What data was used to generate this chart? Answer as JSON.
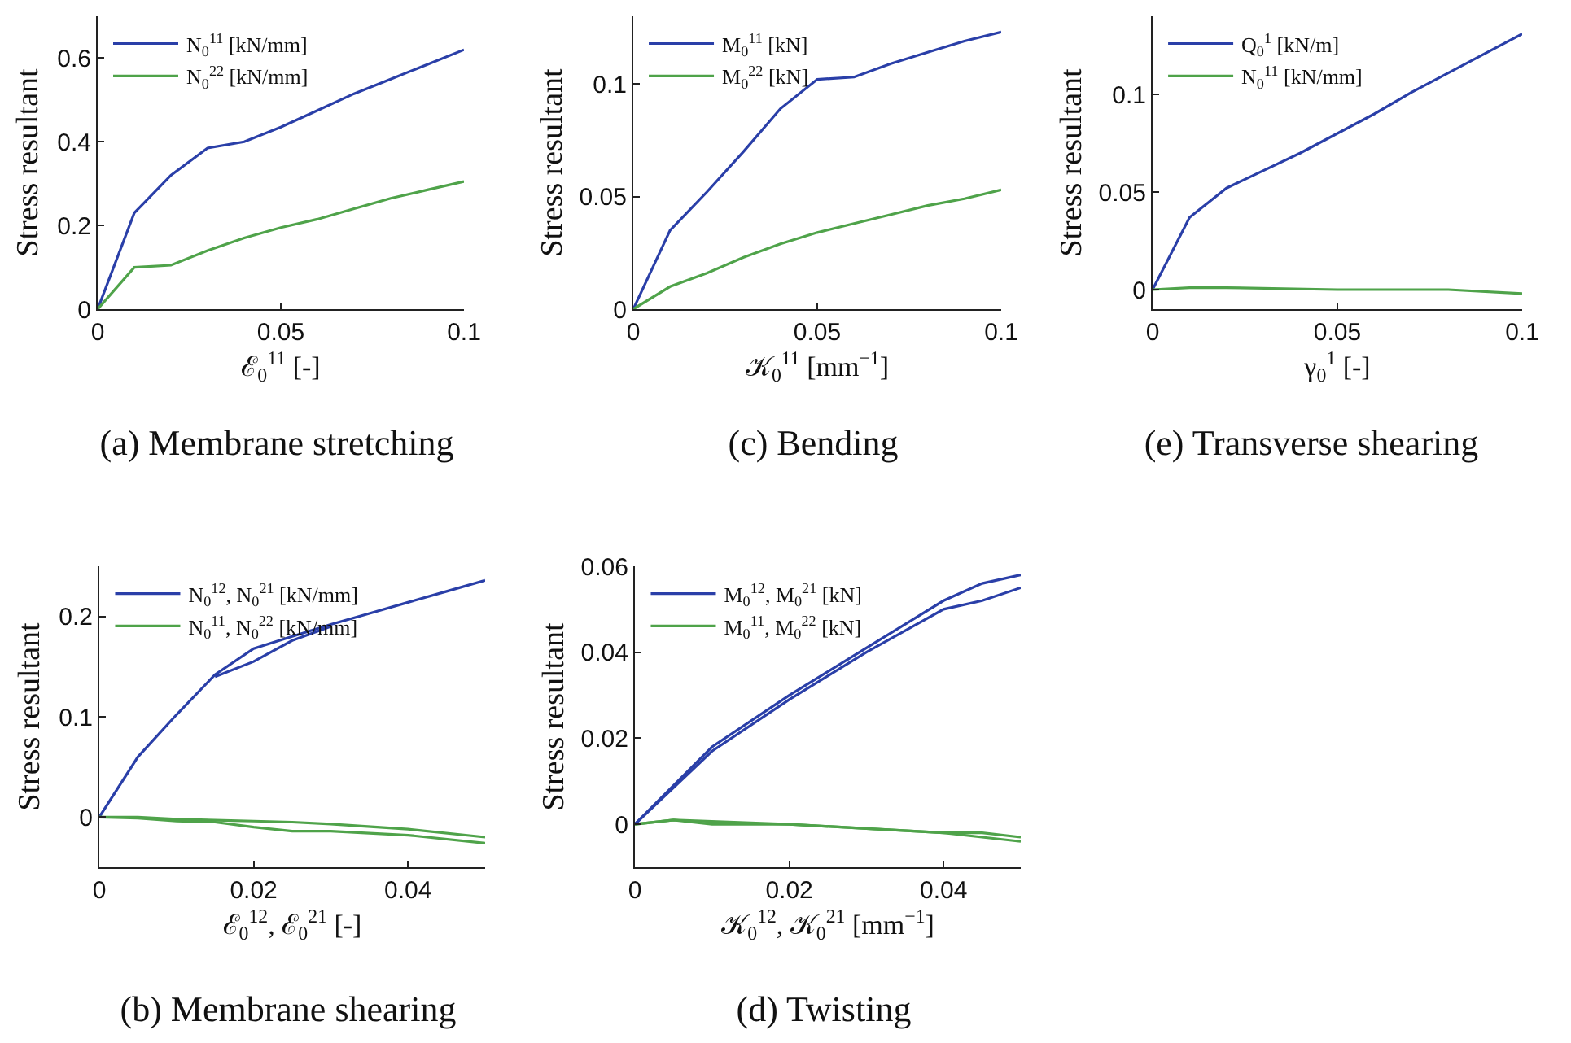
{
  "chart_data": [
    {
      "type": "line",
      "title": "(a) Membrane stretching",
      "xlabel": "ℰ$_{0}$$^{11}$ [-]",
      "ylabel": "Stress resultant",
      "xlim": [
        0,
        0.1
      ],
      "xticks": [
        0,
        0.05,
        0.1
      ],
      "ylim": [
        0,
        0.7
      ],
      "yticks": [
        0,
        0.2,
        0.4,
        0.6
      ],
      "legend": "top left",
      "grid": false,
      "x": [
        0,
        0.01,
        0.02,
        0.03,
        0.04,
        0.05,
        0.06,
        0.07,
        0.08,
        0.09,
        0.1
      ],
      "series": [
        {
          "name": "N$_{0}$$^{11}$ [kN/mm]",
          "color": "#2a3fa8",
          "values": [
            0,
            0.23,
            0.32,
            0.385,
            0.4,
            0.435,
            0.475,
            0.515,
            0.55,
            0.585,
            0.62
          ]
        },
        {
          "name": "N$_{0}$$^{22}$ [kN/mm]",
          "color": "#4fa34a",
          "values": [
            0,
            0.1,
            0.105,
            0.14,
            0.17,
            0.195,
            0.215,
            0.24,
            0.265,
            0.285,
            0.305
          ]
        }
      ]
    },
    {
      "type": "line",
      "title": "(c) Bending",
      "xlabel": "𝒦$_{0}$$^{11}$ [mm$^{−1}$]",
      "ylabel": "Stress resultant",
      "xlim": [
        0,
        0.1
      ],
      "xticks": [
        0,
        0.05,
        0.1
      ],
      "ylim": [
        0,
        0.13
      ],
      "yticks": [
        0,
        0.05,
        0.1
      ],
      "legend": "top left",
      "grid": false,
      "x": [
        0,
        0.01,
        0.02,
        0.03,
        0.04,
        0.05,
        0.06,
        0.07,
        0.08,
        0.09,
        0.1
      ],
      "series": [
        {
          "name": "M$_{0}$$^{11}$ [kN]",
          "color": "#2a3fa8",
          "values": [
            0,
            0.035,
            0.052,
            0.07,
            0.089,
            0.102,
            0.103,
            0.109,
            0.114,
            0.119,
            0.123
          ]
        },
        {
          "name": "M$_{0}$$^{22}$ [kN]",
          "color": "#4fa34a",
          "values": [
            0,
            0.01,
            0.016,
            0.023,
            0.029,
            0.034,
            0.038,
            0.042,
            0.046,
            0.049,
            0.053
          ]
        }
      ]
    },
    {
      "type": "line",
      "title": "(e) Transverse shearing",
      "xlabel": "γ$_{0}$$^{1}$ [-]",
      "ylabel": "Stress resultant",
      "xlim": [
        0,
        0.1
      ],
      "xticks": [
        0,
        0.05,
        0.1
      ],
      "ylim": [
        -0.01,
        0.14
      ],
      "yticks": [
        0,
        0.05,
        0.1
      ],
      "legend": "top left",
      "grid": false,
      "series": [
        {
          "name": "Q$_{0}$$^{1}$ [kN/m]",
          "color": "#2a3fa8",
          "x": [
            0,
            0.01,
            0.02,
            0.03,
            0.04,
            0.05,
            0.06,
            0.07,
            0.08,
            0.09,
            0.1
          ],
          "values": [
            0,
            0.037,
            0.052,
            0.061,
            0.07,
            0.08,
            0.09,
            0.101,
            0.111,
            0.121,
            0.131
          ]
        },
        {
          "name": "N$_{0}$$^{11}$ [kN/mm]",
          "color": "#4fa34a",
          "x": [
            0,
            0.01,
            0.02,
            0.05,
            0.08,
            0.1
          ],
          "values": [
            0,
            0.001,
            0.001,
            0,
            0,
            -0.002
          ]
        }
      ]
    },
    {
      "type": "line",
      "title": "(b) Membrane shearing",
      "xlabel": "ℰ$_{0}$$^{12}$, ℰ$_{0}$$^{21}$ [-]",
      "ylabel": "Stress resultant",
      "xlim": [
        0,
        0.05
      ],
      "xticks": [
        0,
        0.02,
        0.04
      ],
      "ylim": [
        -0.05,
        0.25
      ],
      "yticks": [
        0,
        0.1,
        0.2
      ],
      "legend": "top left",
      "grid": false,
      "series": [
        {
          "name": "N$_{0}$$^{12}$, N$_{0}$$^{21}$ [kN/mm]",
          "color": "#2a3fa8",
          "x": [
            0,
            0.005,
            0.01,
            0.015,
            0.02,
            0.025,
            0.03,
            0.035,
            0.04,
            0.045,
            0.05
          ],
          "values": [
            0,
            0.06,
            0.102,
            0.142,
            0.168,
            0.18,
            0.192,
            0.203,
            0.214,
            0.225,
            0.236
          ]
        },
        {
          "color": "#2a3fa8",
          "x": [
            0.015,
            0.02,
            0.025,
            0.03
          ],
          "values": [
            0.14,
            0.155,
            0.176,
            0.19
          ]
        },
        {
          "name": "N$_{0}$$^{11}$, N$_{0}$$^{22}$ [kN/mm]",
          "color": "#4fa34a",
          "x": [
            0,
            0.005,
            0.01,
            0.015,
            0.02,
            0.025,
            0.03,
            0.04,
            0.05
          ],
          "values": [
            0,
            0,
            -0.002,
            -0.003,
            -0.004,
            -0.005,
            -0.007,
            -0.012,
            -0.02
          ]
        },
        {
          "color": "#4fa34a",
          "x": [
            0,
            0.005,
            0.01,
            0.015,
            0.02,
            0.025,
            0.03,
            0.04,
            0.05
          ],
          "values": [
            0,
            -0.001,
            -0.004,
            -0.005,
            -0.01,
            -0.014,
            -0.014,
            -0.018,
            -0.026
          ]
        }
      ]
    },
    {
      "type": "line",
      "title": "(d) Twisting",
      "xlabel": "𝒦$_{0}$$^{12}$, 𝒦$_{0}$$^{21}$ [mm$^{−1}$]",
      "ylabel": "Stress resultant",
      "xlim": [
        0,
        0.05
      ],
      "xticks": [
        0,
        0.02,
        0.04
      ],
      "ylim": [
        -0.01,
        0.06
      ],
      "yticks": [
        0,
        0.02,
        0.04,
        0.06
      ],
      "legend": "top left",
      "grid": false,
      "series": [
        {
          "name": "M$_{0}$$^{12}$, M$_{0}$$^{21}$ [kN]",
          "color": "#2a3fa8",
          "x": [
            0,
            0.01,
            0.02,
            0.03,
            0.04,
            0.045,
            0.05
          ],
          "values": [
            0,
            0.018,
            0.03,
            0.041,
            0.052,
            0.056,
            0.058
          ]
        },
        {
          "color": "#2a3fa8",
          "x": [
            0,
            0.01,
            0.02,
            0.03,
            0.04,
            0.045,
            0.05
          ],
          "values": [
            0,
            0.017,
            0.029,
            0.04,
            0.05,
            0.052,
            0.055
          ]
        },
        {
          "name": "M$_{0}$$^{11}$, M$_{0}$$^{22}$ [kN]",
          "color": "#4fa34a",
          "x": [
            0,
            0.005,
            0.01,
            0.02,
            0.03,
            0.04,
            0.045,
            0.05
          ],
          "values": [
            0,
            0.001,
            0,
            0,
            -0.001,
            -0.002,
            -0.002,
            -0.003
          ]
        },
        {
          "color": "#4fa34a",
          "x": [
            0,
            0.005,
            0.02,
            0.03,
            0.04,
            0.045,
            0.05
          ],
          "values": [
            0,
            0.001,
            0,
            -0.001,
            -0.002,
            -0.003,
            -0.004
          ]
        }
      ]
    }
  ]
}
